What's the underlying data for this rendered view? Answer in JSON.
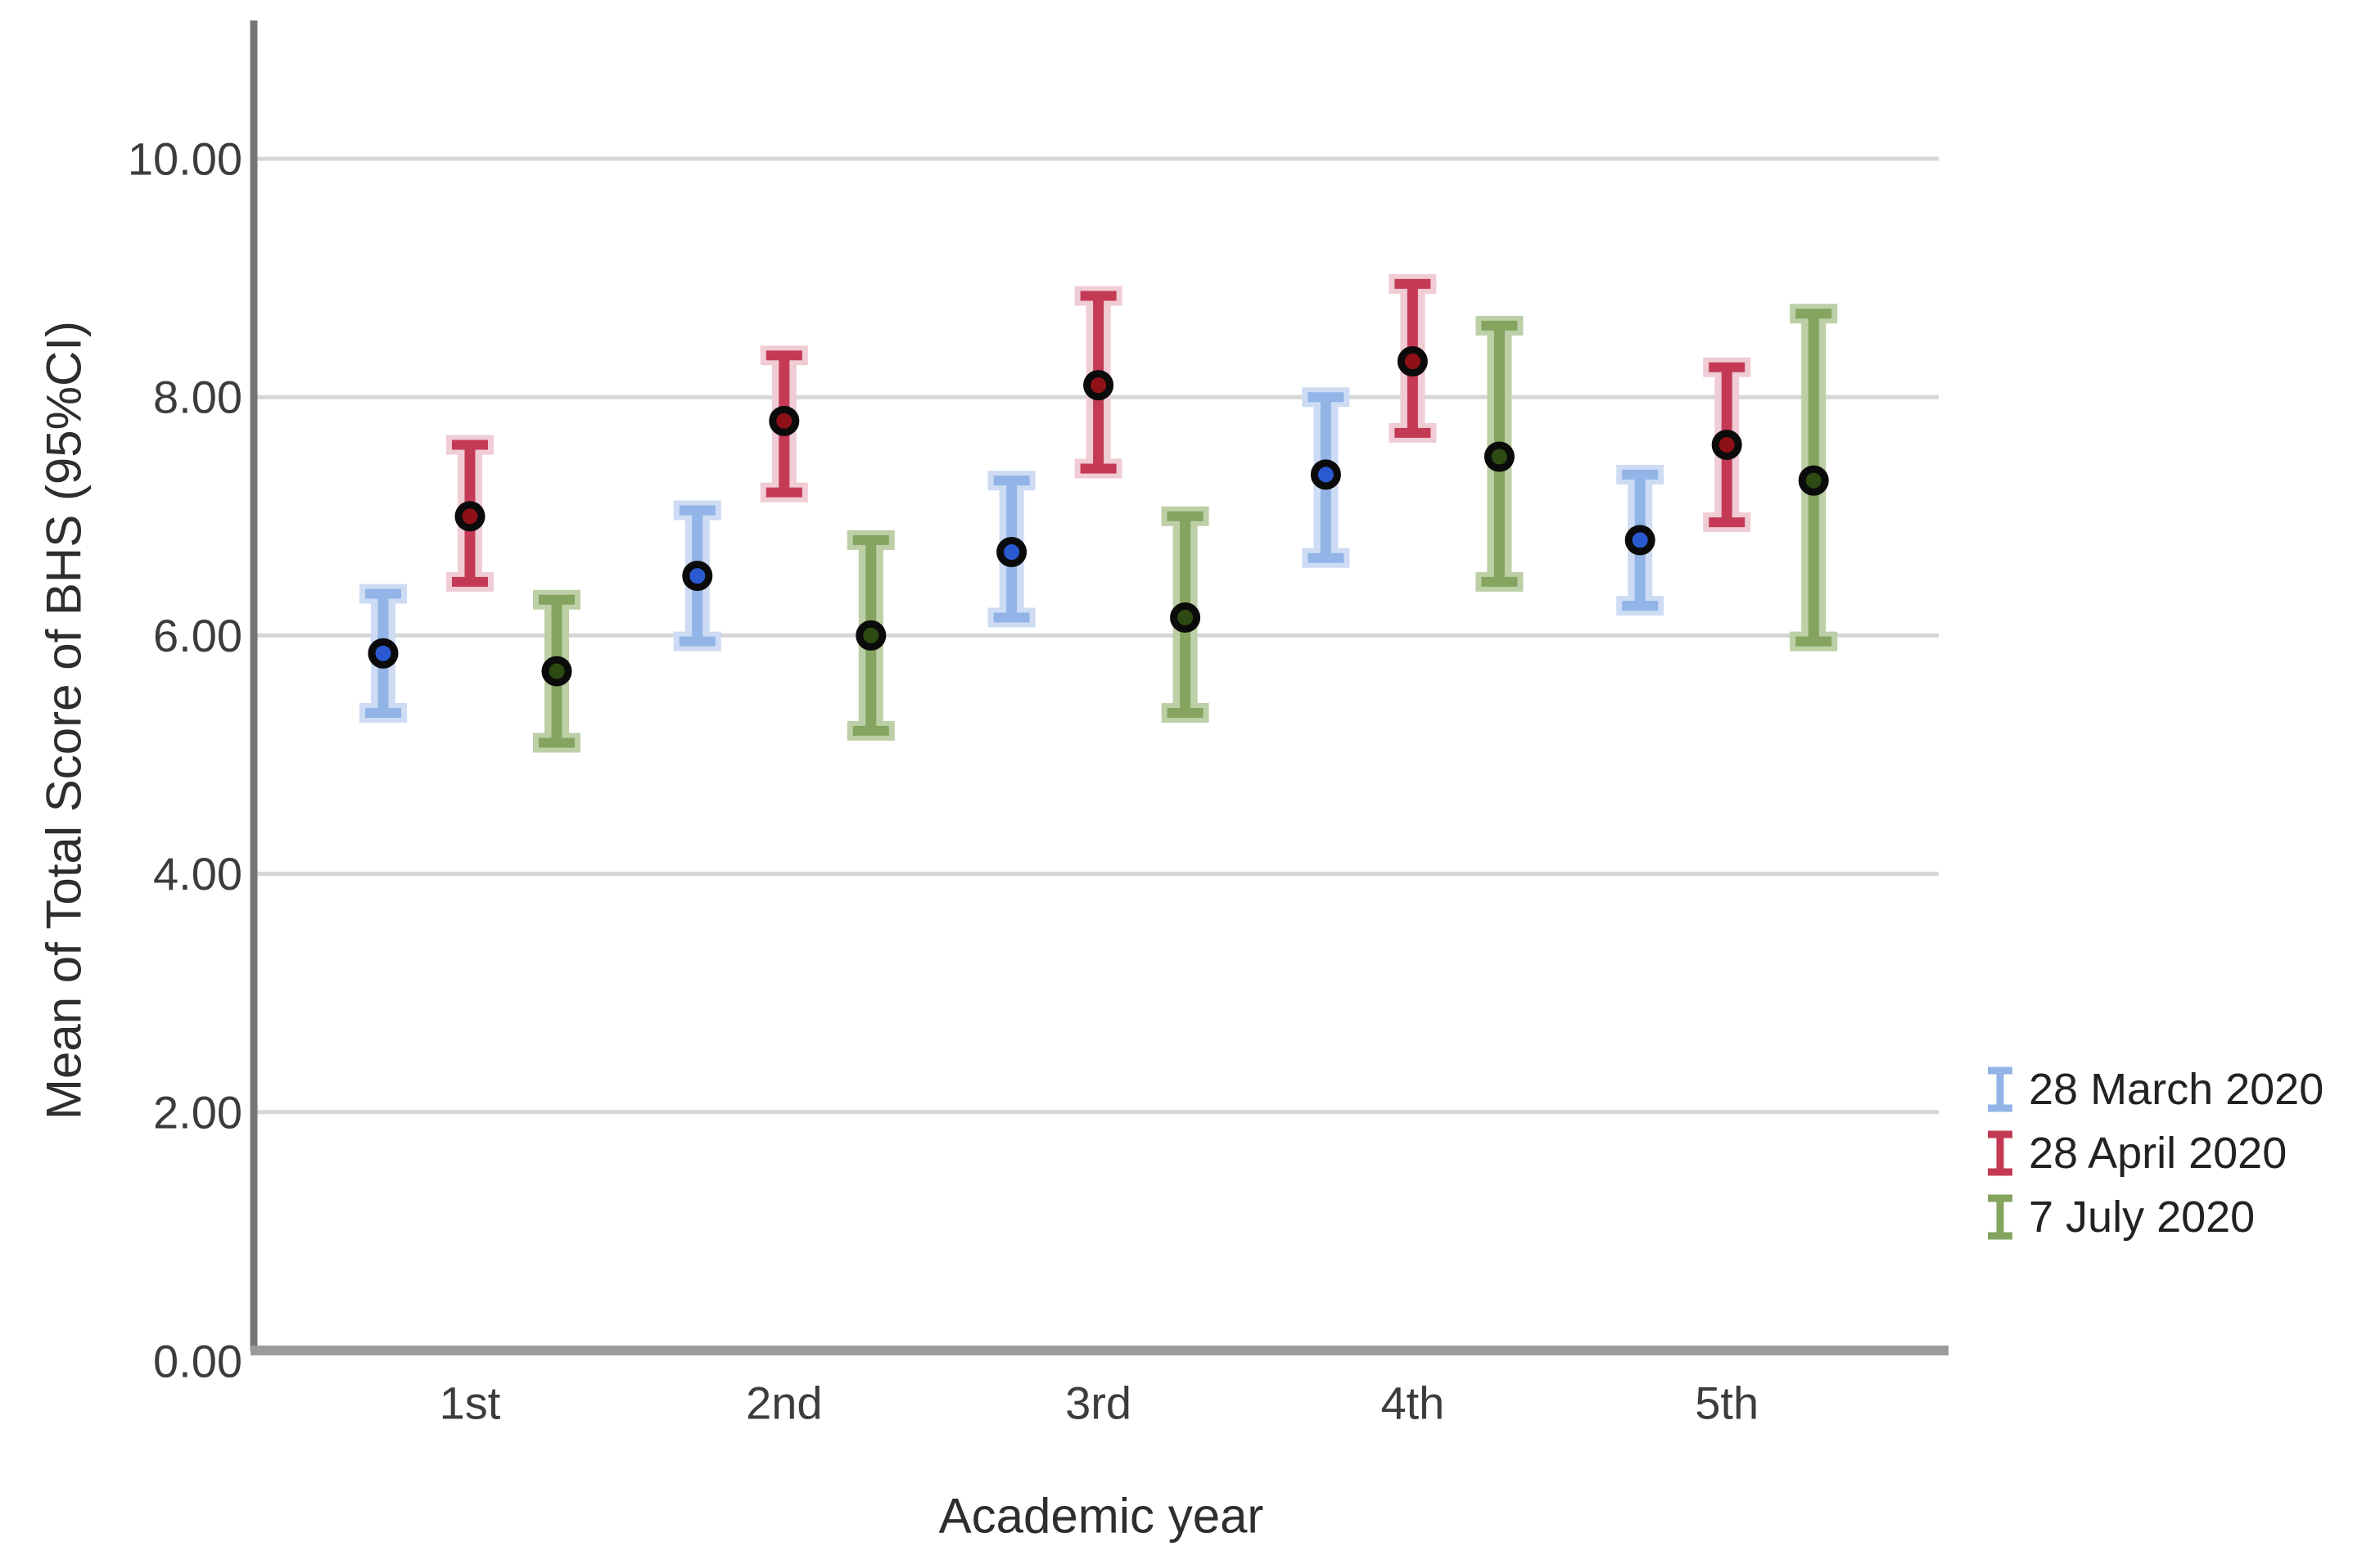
{
  "chart_data": {
    "type": "errorbar",
    "title": "",
    "xlabel": "Academic year",
    "ylabel": "Mean of Total Score of BHS (95%CI)",
    "categories": [
      "1st",
      "2nd",
      "3rd",
      "4th",
      "5th"
    ],
    "y_ticks": [
      {
        "v": 0,
        "label": "0.00"
      },
      {
        "v": 2,
        "label": "2.00"
      },
      {
        "v": 4,
        "label": "4.00"
      },
      {
        "v": 6,
        "label": "6.00"
      },
      {
        "v": 8,
        "label": "8.00"
      },
      {
        "v": 10,
        "label": "10.00"
      }
    ],
    "ylim": [
      0,
      11.16
    ],
    "grid": "horizontal",
    "legend_position": "right",
    "series": [
      {
        "name": "28 March 2020",
        "bar_color": "#92b4e6",
        "bar_halo": "#cddcf4",
        "marker_color": "#2b59d0",
        "marker_ring": "#0b0b0b",
        "values": [
          5.85,
          6.5,
          6.7,
          7.35,
          6.8
        ],
        "ci_low": [
          5.35,
          5.95,
          6.15,
          6.65,
          6.25
        ],
        "ci_high": [
          6.35,
          7.05,
          7.3,
          8.0,
          7.35
        ]
      },
      {
        "name": "28 April 2020",
        "bar_color": "#c43a55",
        "bar_halo": "#f0ccd5",
        "marker_color": "#8e1118",
        "marker_ring": "#0b0b0b",
        "values": [
          7.0,
          7.8,
          8.1,
          8.3,
          7.6
        ],
        "ci_low": [
          6.45,
          7.2,
          7.4,
          7.7,
          6.95
        ],
        "ci_high": [
          7.6,
          8.35,
          8.85,
          8.95,
          8.25
        ]
      },
      {
        "name": "7 July 2020",
        "bar_color": "#84a45f",
        "bar_halo": "#bccfa6",
        "marker_color": "#2d4a12",
        "marker_ring": "#0b0b0b",
        "values": [
          5.7,
          6.0,
          6.15,
          7.5,
          7.3
        ],
        "ci_low": [
          5.1,
          5.2,
          5.35,
          6.45,
          5.95
        ],
        "ci_high": [
          6.3,
          6.8,
          7.0,
          8.6,
          8.7
        ]
      }
    ],
    "style": {
      "gridline_color": "#d6d6d6",
      "y_axis_color": "#767676",
      "x_frame_color": "#9b9b9b",
      "tick_label_color": "#3c3c3c",
      "background": "#ffffff"
    }
  }
}
